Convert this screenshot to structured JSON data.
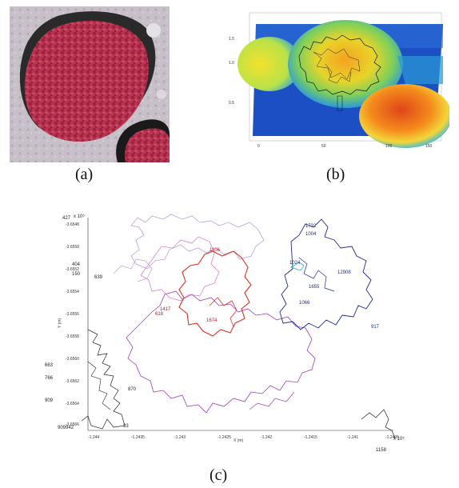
{
  "captions": {
    "a": "(a)",
    "b": "(b)",
    "c": "(c)"
  },
  "panel_c": {
    "exponent_label": "x 10⁵",
    "yticks": [
      "-3.6548",
      "-3.6550",
      "-3.6552",
      "-3.6554",
      "-3.6556",
      "-3.6558",
      "-3.6560",
      "-3.6562",
      "-3.6564",
      "-3.6566"
    ],
    "xticks": [
      "-1.244",
      "-1.2435",
      "-1.243",
      "-1.2425",
      "-1.242",
      "-1.2415",
      "-1.241",
      "-1.2405"
    ],
    "ylabel": "Y (m)",
    "xlabel": "X (m)",
    "margin_labels": [
      "427",
      "404",
      "150",
      "639",
      "663",
      "766",
      "909",
      "942",
      "33",
      "1158",
      "870",
      "909"
    ],
    "region_labels": {
      "top_center": "1106",
      "center": "1674",
      "left": "1417",
      "left2": "618",
      "right_top": "1732",
      "right_b": "1004",
      "right_c": "1024",
      "right_d": "12908",
      "right_e": "1655",
      "right_f": "1066",
      "right_g": "917"
    }
  },
  "colors": {
    "red": "#e03020",
    "navy": "#1c2a8f",
    "purple": "#9a3fb0",
    "pink": "#e080c8",
    "lavender": "#b9a0e0",
    "black": "#222222"
  }
}
